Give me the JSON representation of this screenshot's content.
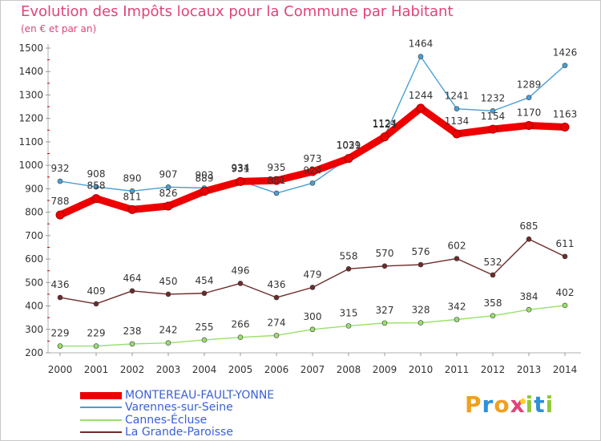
{
  "header": {
    "title": "Evolution des Impôts locaux pour la Commune par Habitant",
    "subtitle": "(en € et par an)"
  },
  "chart_data": {
    "type": "line",
    "x": [
      "2000",
      "2001",
      "2002",
      "2003",
      "2004",
      "2005",
      "2006",
      "2007",
      "2008",
      "2009",
      "2010",
      "2011",
      "2012",
      "2013",
      "2014"
    ],
    "ylim": [
      200,
      1500
    ],
    "yticks": [
      "1500",
      "1400",
      "1300",
      "1200",
      "1100",
      "1000",
      "900",
      "800",
      "700",
      "600",
      "500",
      "400",
      "300",
      "200"
    ],
    "grid": false,
    "legend_position": "bottom-left",
    "series": [
      {
        "name": "MONTEREAU-FAULT-YONNE",
        "color": "#ee0000",
        "values": [
          788,
          858,
          811,
          826,
          889,
          931,
          935,
          973,
          1029,
          1121,
          1244,
          1134,
          1154,
          1170,
          1163
        ]
      },
      {
        "name": "Varennes-sur-Seine",
        "color": "#4a9fd4",
        "values": [
          932,
          908,
          890,
          907,
          903,
          934,
          881,
          924,
          1031,
          1124,
          1464,
          1241,
          1232,
          1289,
          1426
        ]
      },
      {
        "name": "Cannes-Écluse",
        "color": "#99e06b",
        "values": [
          229,
          229,
          238,
          242,
          255,
          266,
          274,
          300,
          315,
          327,
          328,
          342,
          358,
          384,
          402
        ]
      },
      {
        "name": "La Grande-Paroisse",
        "color": "#6e2a2a",
        "values": [
          436,
          409,
          464,
          450,
          454,
          496,
          436,
          479,
          558,
          570,
          576,
          602,
          532,
          685,
          611
        ]
      }
    ]
  },
  "logo": {
    "text": "Proxiti",
    "colors": [
      "#f0a020",
      "#2f8fd8",
      "#e0447a",
      "#90c83a"
    ]
  }
}
